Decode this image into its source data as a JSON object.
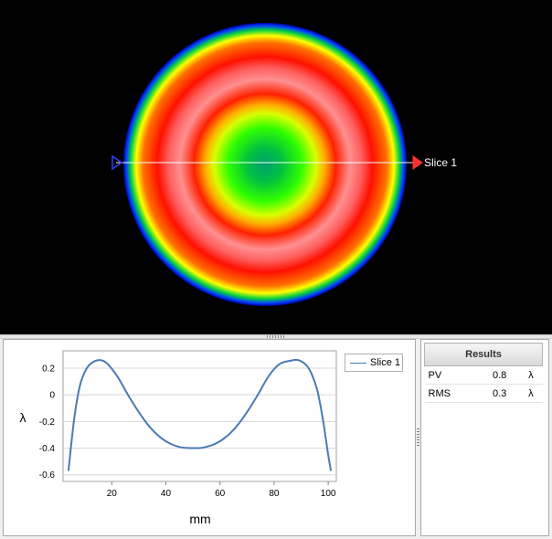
{
  "map": {
    "slice_label": "Slice 1",
    "colors": {
      "background": "#000000",
      "slice_line": "#ffffff",
      "start_handle": "#3040ff",
      "end_handle": "#ff3030"
    }
  },
  "chart_data": {
    "type": "line",
    "xlabel": "mm",
    "ylabel": "λ",
    "xlim": [
      2,
      103
    ],
    "ylim": [
      -0.65,
      0.33
    ],
    "x_ticks": [
      "20",
      "40",
      "60",
      "80",
      "100"
    ],
    "y_ticks": [
      "0.2",
      "0",
      "-0.2",
      "-0.4",
      "-0.6"
    ],
    "grid": true,
    "legend": "top-right",
    "series": [
      {
        "name": "Slice 1",
        "color": "#4a7ab5",
        "x": [
          4,
          6,
          8,
          10,
          12,
          15,
          18,
          22,
          26,
          30,
          34,
          38,
          42,
          46,
          50,
          52,
          54,
          58,
          62,
          66,
          70,
          74,
          78,
          82,
          86,
          89,
          92,
          94,
          96,
          98,
          100,
          101
        ],
        "y": [
          -0.57,
          -0.2,
          0.05,
          0.17,
          0.23,
          0.26,
          0.24,
          0.14,
          0.0,
          -0.13,
          -0.24,
          -0.32,
          -0.37,
          -0.395,
          -0.4,
          -0.4,
          -0.395,
          -0.37,
          -0.32,
          -0.24,
          -0.13,
          0.0,
          0.14,
          0.23,
          0.255,
          0.26,
          0.22,
          0.15,
          0.03,
          -0.18,
          -0.45,
          -0.57
        ]
      }
    ]
  },
  "results": {
    "header": "Results",
    "rows": [
      {
        "label": "PV",
        "value": "0.8",
        "unit": "λ"
      },
      {
        "label": "RMS",
        "value": "0.3",
        "unit": "λ"
      }
    ]
  }
}
